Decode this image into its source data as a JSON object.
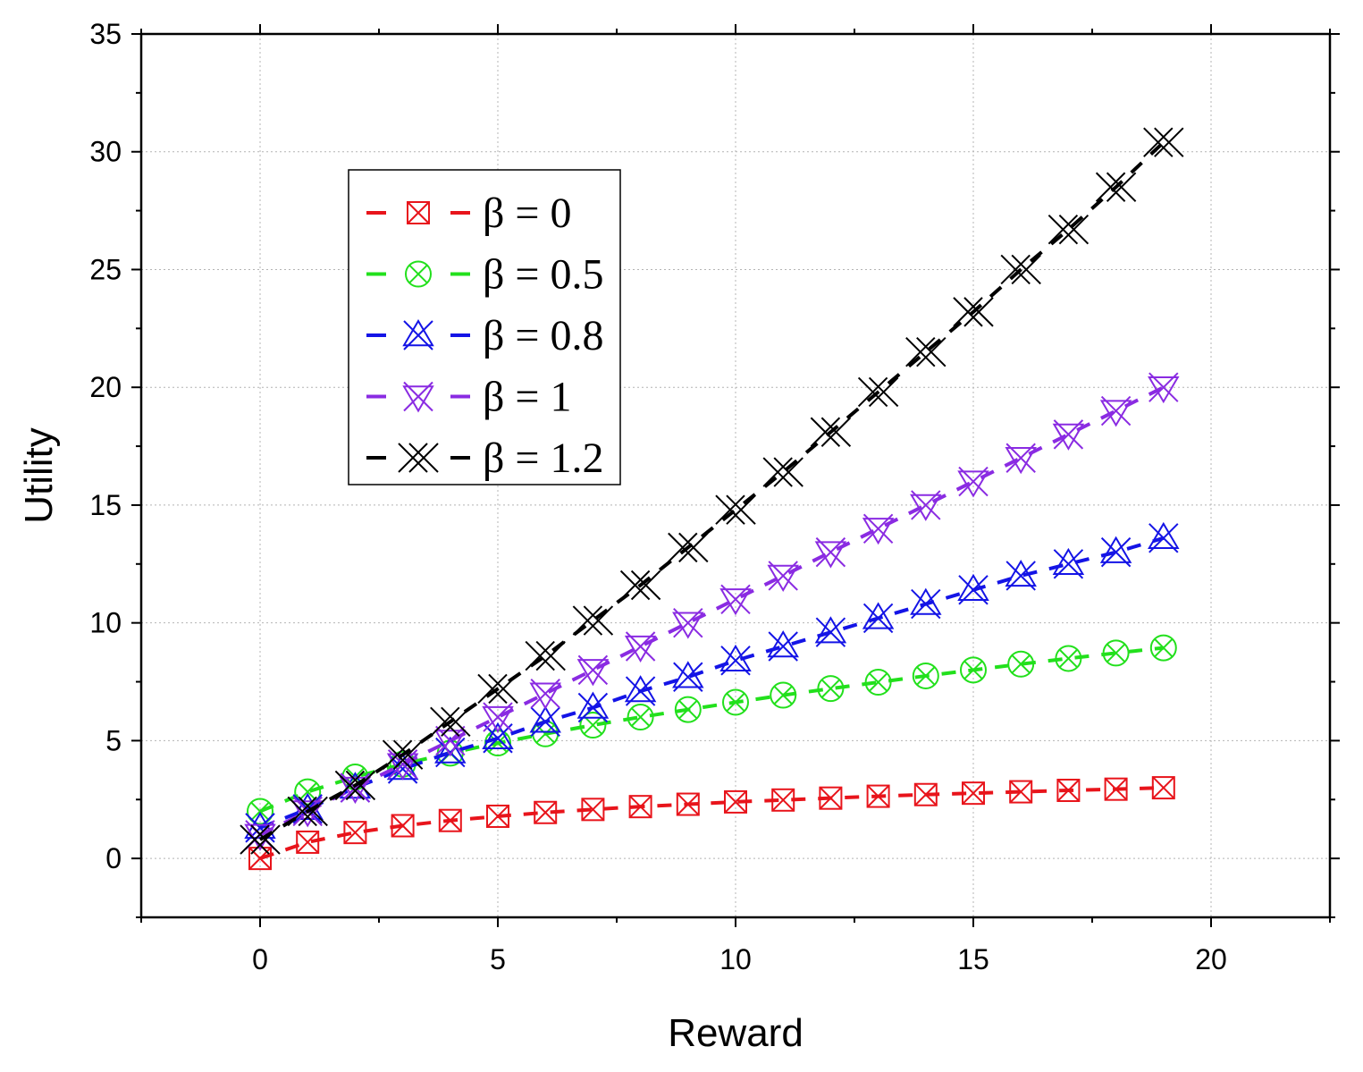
{
  "chart_data": {
    "type": "line",
    "title": "",
    "xlabel": "Reward",
    "ylabel": "Utility",
    "xlim": [
      -2.5,
      22.5
    ],
    "ylim": [
      -2.5,
      35
    ],
    "xticks": [
      0,
      5,
      10,
      15,
      20
    ],
    "yticks": [
      0,
      5,
      10,
      15,
      20,
      25,
      30,
      35
    ],
    "xtick_labels": [
      "0",
      "5",
      "10",
      "15",
      "20"
    ],
    "ytick_labels": [
      "0",
      "5",
      "10",
      "15",
      "20",
      "25",
      "30",
      "35"
    ],
    "grid": true,
    "legend_position": "upper-left",
    "x": [
      0,
      1,
      2,
      3,
      4,
      5,
      6,
      7,
      8,
      9,
      10,
      11,
      12,
      13,
      14,
      15,
      16,
      17,
      18,
      19
    ],
    "series": [
      {
        "name": "β = 0",
        "color": "#e8141b",
        "marker": "square-x",
        "values": [
          0,
          0.69,
          1.1,
          1.39,
          1.61,
          1.79,
          1.95,
          2.08,
          2.2,
          2.3,
          2.4,
          2.48,
          2.56,
          2.64,
          2.71,
          2.77,
          2.83,
          2.89,
          2.94,
          3.0
        ]
      },
      {
        "name": "β = 0.5",
        "color": "#22e01c",
        "marker": "circle-x",
        "values": [
          2.0,
          2.83,
          3.46,
          4.0,
          4.47,
          4.9,
          5.29,
          5.66,
          6.0,
          6.32,
          6.63,
          6.93,
          7.21,
          7.48,
          7.75,
          8.0,
          8.25,
          8.49,
          8.72,
          8.94
        ]
      },
      {
        "name": "β = 0.8",
        "color": "#1414e6",
        "marker": "triangle-x",
        "values": [
          1.3,
          2.1,
          3.0,
          3.8,
          4.5,
          5.1,
          5.8,
          6.4,
          7.1,
          7.7,
          8.4,
          9.0,
          9.6,
          10.2,
          10.8,
          11.4,
          12.0,
          12.5,
          13.0,
          13.6
        ]
      },
      {
        "name": "β = 1",
        "color": "#8a2be2",
        "marker": "invtriangle-x",
        "values": [
          1.0,
          2.0,
          3.0,
          4.0,
          5.0,
          6.0,
          7.0,
          8.0,
          9.0,
          10.0,
          11.0,
          12.0,
          13.0,
          14.0,
          15.0,
          16.0,
          17.0,
          18.0,
          19.0,
          20.0
        ]
      },
      {
        "name": "β = 1.2",
        "color": "#000000",
        "marker": "double-x",
        "values": [
          0.8,
          2.0,
          3.1,
          4.4,
          5.8,
          7.2,
          8.6,
          10.1,
          11.6,
          13.2,
          14.8,
          16.4,
          18.1,
          19.8,
          21.5,
          23.2,
          25.0,
          26.7,
          28.5,
          30.4
        ]
      }
    ]
  }
}
